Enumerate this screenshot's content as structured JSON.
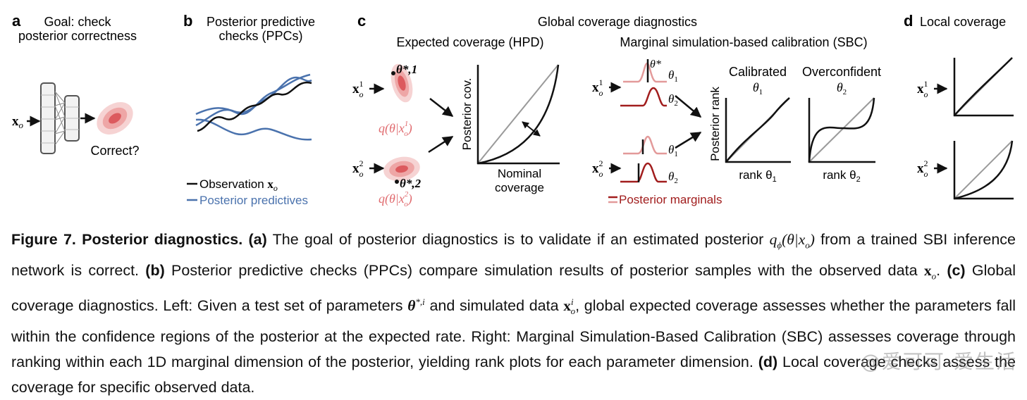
{
  "panel_a": {
    "letter": "a",
    "title_line1": "Goal: check",
    "title_line2": "posterior correctness",
    "input_label": "x",
    "input_sub": "o",
    "output_label": "Correct?"
  },
  "panel_b": {
    "letter": "b",
    "title_line1": "Posterior predictive",
    "title_line2": "checks (PPCs)",
    "legend_observation": "Observation",
    "legend_observation_math": "x",
    "legend_observation_sub": "o",
    "legend_predictives": "Posterior predictives",
    "colors": {
      "observation": "#111111",
      "predictive": "#4a72ad"
    }
  },
  "panel_c": {
    "letter": "c",
    "title": "Global coverage diagnostics",
    "hpd_title": "Expected coverage (HPD)",
    "sbc_title": "Marginal simulation-based calibration (SBC)",
    "x1_label": "x",
    "x1_sup": "1",
    "x1_sub": "o",
    "x2_label": "x",
    "x2_sup": "2",
    "x2_sub": "o",
    "theta_star_1": "θ*,1",
    "theta_star_2": "θ*,2",
    "q_label_1": "q(θ|x",
    "q_label_1_sup": "1",
    "q_label_2": "q(θ|x",
    "q_label_2_sup": "2",
    "q_sub": "o",
    "q_close": ")",
    "hpd_ylabel": "Posterior cov.",
    "hpd_xlabel_line1": "Nominal",
    "hpd_xlabel_line2": "coverage",
    "theta_star": "θ*",
    "theta1": "θ",
    "theta1_sub": "1",
    "theta2": "θ",
    "theta2_sub": "2",
    "calibrated_title": "Calibrated",
    "overconfident_title": "Overconfident",
    "rank_ylabel": "Posterior rank",
    "rank_x1": "rank θ",
    "rank_x1_sub": "1",
    "rank_x2": "rank θ",
    "rank_x2_sub": "2",
    "marginals_legend": "Posterior marginals",
    "colors": {
      "posterior": "#e06b6f",
      "marginal_dark": "#a11d1d",
      "marginal_light": "#e39a9a",
      "diag": "#9a9a9a"
    }
  },
  "panel_d": {
    "letter": "d",
    "title": "Local coverage",
    "x1_label": "x",
    "x1_sup": "1",
    "x1_sub": "o",
    "x2_label": "x",
    "x2_sup": "2",
    "x2_sub": "o"
  },
  "caption": {
    "figure_label": "Figure 7. Posterior diagnostics.",
    "a_label": "(a)",
    "a_text_1": " The goal of posterior diagnostics is to validate if an estimated posterior ",
    "a_math": "q",
    "a_math_sub": "ϕ",
    "a_math_rest": "(θ|x",
    "a_math_rest_sub": "o",
    "a_math_close": ")",
    "a_text_2": " from a trained SBI inference network is correct. ",
    "b_label": "(b)",
    "b_text": " Posterior predictive checks (PPCs) compare simulation results of posterior samples with the observed data ",
    "b_math": "x",
    "b_math_sub": "o",
    "b_end": ". ",
    "c_label": "(c)",
    "c_text_1": " Global coverage diagnostics. Left: Given a test set of parameters ",
    "c_math_theta": "θ",
    "c_math_theta_sup": "*,i",
    "c_text_2": " and simulated data ",
    "c_math_x": "x",
    "c_math_x_sup": "i",
    "c_math_x_sub": "o",
    "c_text_3": ", global expected coverage assesses whether the parameters fall within the confidence regions of the posterior at the expected rate. Right: Marginal Simulation-Based Calibration (SBC) assesses coverage through ranking within each 1D marginal dimension of the posterior, yielding rank plots for each parameter dimension. ",
    "d_label": "(d)",
    "d_text": " Local coverage checks assess the coverage for specific observed data."
  },
  "watermark": "@爱可可-爱生活"
}
